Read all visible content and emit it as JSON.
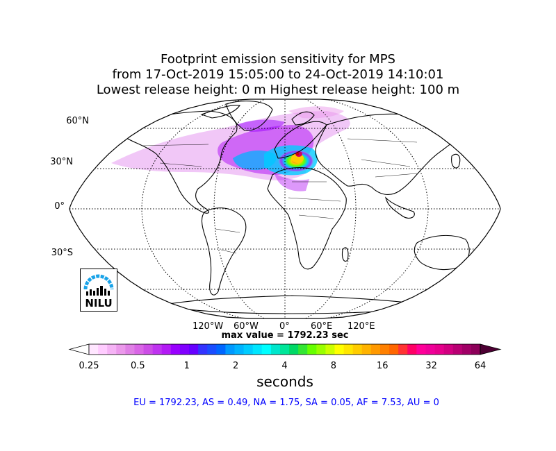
{
  "title": {
    "line1": "Footprint emission sensitivity for MPS",
    "line2": "from 17-Oct-2019 15:05:00 to 24-Oct-2019 14:10:01",
    "line3": "Lowest release height: 0 m       Highest release height: 100 m"
  },
  "map": {
    "projection": "Robinson",
    "graticule": "dotted",
    "lat_labels": [
      "60°N",
      "30°N",
      "0°",
      "30°S"
    ],
    "lon_labels": [
      "120°W",
      "60°W",
      "0°",
      "60°E",
      "120°E"
    ],
    "max_value_text": "max value = 1792.23 sec"
  },
  "colorbar": {
    "tick_labels": [
      "0.25",
      "0.5",
      "1",
      "2",
      "4",
      "8",
      "16",
      "32",
      "64"
    ],
    "unit_label": "seconds",
    "colors": [
      "#ffe6ff",
      "#ffccff",
      "#f5b3f5",
      "#eb99eb",
      "#e080e6",
      "#d966e6",
      "#cc4de6",
      "#bf33f0",
      "#b31af5",
      "#9900ff",
      "#8000ff",
      "#6600ff",
      "#3333ff",
      "#1a4dff",
      "#0066ff",
      "#0099ff",
      "#00b3ff",
      "#00ccff",
      "#00e6ff",
      "#00ffff",
      "#00e6cc",
      "#00e699",
      "#00d966",
      "#33e633",
      "#66ff00",
      "#99ff00",
      "#ccff00",
      "#ffff00",
      "#ffe600",
      "#ffcc00",
      "#ffb300",
      "#ff9900",
      "#ff8000",
      "#ff6600",
      "#ff3333",
      "#ff0066",
      "#ff0099",
      "#f00099",
      "#e6008c",
      "#d10080",
      "#b80073",
      "#a00066",
      "#8c0059"
    ]
  },
  "regions_summary": "EU = 1792.23,  AS = 0.49,  NA = 1.75,  SA = 0.05,  AF = 7.53,  AU = 0",
  "logo": {
    "text": "NILU"
  }
}
